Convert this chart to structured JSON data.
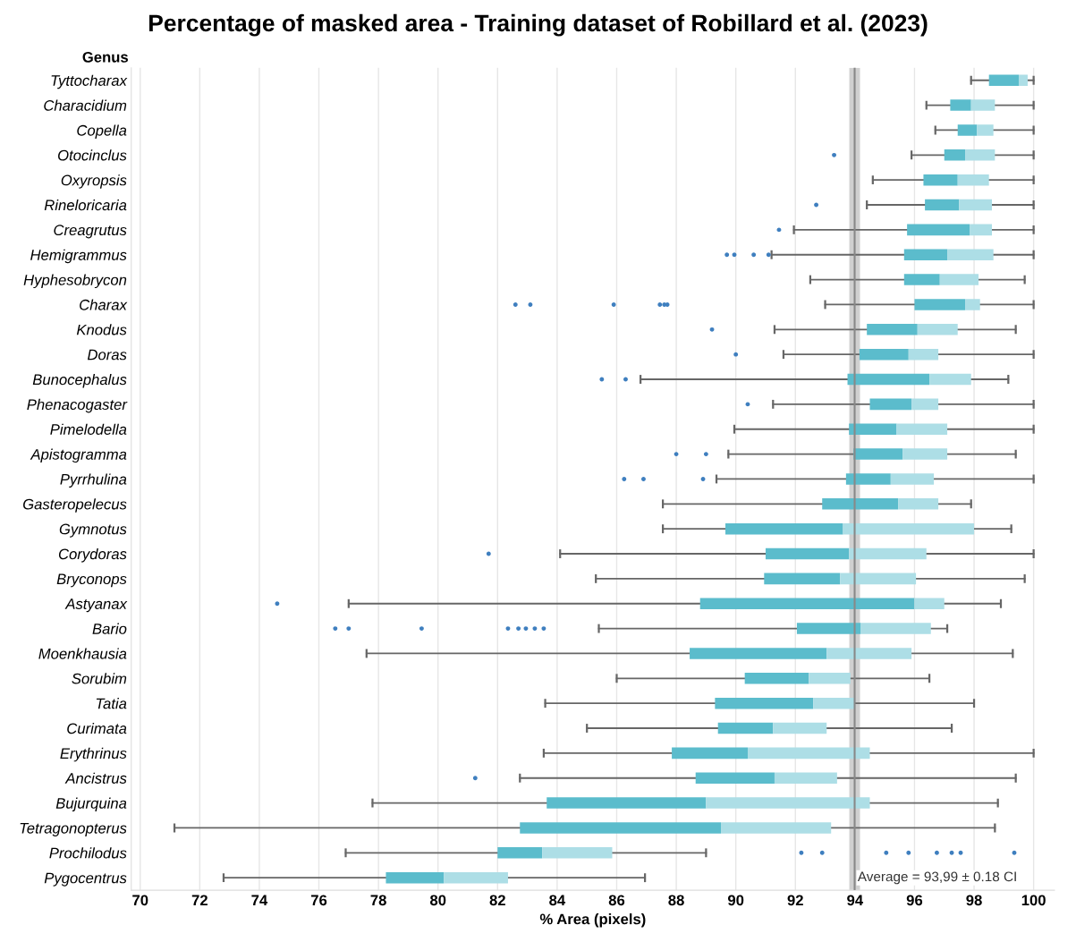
{
  "chart_data": {
    "type": "box",
    "orientation": "horizontal",
    "title": "Percentage of masked area - Training dataset of Robillard et al. (2023)",
    "xlabel": "% Area (pixels)",
    "ylabel": "Genus",
    "categories": [
      "Tyttocharax",
      "Characidium",
      "Copella",
      "Otocinclus",
      "Oxyropsis",
      "Rineloricaria",
      "Creagrutus",
      "Hemigrammus",
      "Hyphesobrycon",
      "Charax",
      "Knodus",
      "Doras",
      "Bunocephalus",
      "Phenacogaster",
      "Pimelodella",
      "Apistogramma",
      "Pyrrhulina",
      "Gasteropelecus",
      "Gymnotus",
      "Corydoras",
      "Bryconops",
      "Astyanax",
      "Bario",
      "Moenkhausia",
      "Sorubim",
      "Tatia",
      "Curimata",
      "Erythrinus",
      "Ancistrus",
      "Bujurquina",
      "Tetragonopterus",
      "Prochilodus",
      "Pygocentrus"
    ],
    "series": [
      {
        "color": "#5bbccc",
        "boxes": [
          {
            "low": 97.9,
            "q1": 98.5,
            "median": 99.5,
            "q3": 99.8,
            "high": 100
          },
          {
            "low": 96.4,
            "q1": 97.2,
            "median": 97.9,
            "q3": 98.7,
            "high": 100
          },
          {
            "low": 96.7,
            "q1": 97.45,
            "median": 98.1,
            "q3": 98.65,
            "high": 100
          },
          {
            "low": 95.9,
            "q1": 97.0,
            "median": 97.7,
            "q3": 98.7,
            "high": 100,
            "outliers": [
              93.3
            ]
          },
          {
            "low": 94.6,
            "q1": 96.3,
            "median": 97.45,
            "q3": 98.5,
            "high": 100
          },
          {
            "low": 94.4,
            "q1": 96.35,
            "median": 97.5,
            "q3": 98.6,
            "high": 100,
            "outliers": [
              92.7
            ]
          },
          {
            "low": 91.95,
            "q1": 95.75,
            "median": 97.85,
            "q3": 98.6,
            "high": 100,
            "outliers": [
              91.45
            ]
          },
          {
            "low": 91.2,
            "q1": 95.65,
            "median": 97.1,
            "q3": 98.65,
            "high": 100,
            "outliers": [
              89.7,
              89.95,
              90.6,
              91.1
            ]
          },
          {
            "low": 92.5,
            "q1": 95.65,
            "median": 96.85,
            "q3": 98.15,
            "high": 99.7
          },
          {
            "low": 93.0,
            "q1": 96.0,
            "median": 97.7,
            "q3": 98.2,
            "high": 100,
            "outliers": [
              82.6,
              83.1,
              85.9,
              87.45,
              87.6,
              87.7
            ]
          },
          {
            "low": 91.3,
            "q1": 94.4,
            "median": 96.1,
            "q3": 97.45,
            "high": 99.4,
            "outliers": [
              89.2
            ]
          },
          {
            "low": 91.6,
            "q1": 94.15,
            "median": 95.8,
            "q3": 96.8,
            "high": 100,
            "outliers": [
              90.0
            ]
          },
          {
            "low": 86.8,
            "q1": 93.75,
            "median": 96.5,
            "q3": 97.9,
            "high": 99.15,
            "outliers": [
              85.5,
              86.3
            ]
          },
          {
            "low": 91.25,
            "q1": 94.5,
            "median": 95.9,
            "q3": 96.8,
            "high": 100,
            "outliers": [
              90.4
            ]
          },
          {
            "low": 89.95,
            "q1": 93.8,
            "median": 95.4,
            "q3": 97.1,
            "high": 100
          },
          {
            "low": 89.75,
            "q1": 93.95,
            "median": 95.6,
            "q3": 97.1,
            "high": 99.4,
            "outliers": [
              88.0,
              89.0
            ]
          },
          {
            "low": 89.35,
            "q1": 93.7,
            "median": 95.2,
            "q3": 96.65,
            "high": 100,
            "outliers": [
              86.25,
              86.9,
              88.9
            ]
          },
          {
            "low": 87.55,
            "q1": 92.9,
            "median": 95.45,
            "q3": 96.8,
            "high": 97.9
          },
          {
            "low": 87.55,
            "q1": 89.65,
            "median": 93.6,
            "q3": 98.0,
            "high": 99.25
          },
          {
            "low": 84.1,
            "q1": 91.0,
            "median": 93.8,
            "q3": 96.4,
            "high": 100,
            "outliers": [
              81.7
            ]
          },
          {
            "low": 85.3,
            "q1": 90.95,
            "median": 93.5,
            "q3": 96.05,
            "high": 99.7
          },
          {
            "low": 77.0,
            "q1": 88.8,
            "median": 96.0,
            "q3": 97.0,
            "high": 98.9,
            "outliers": [
              74.6
            ]
          },
          {
            "low": 85.4,
            "q1": 92.05,
            "median": 94.2,
            "q3": 96.55,
            "high": 97.1,
            "outliers": [
              76.55,
              77.0,
              79.45,
              82.35,
              82.7,
              82.95,
              83.25,
              83.55
            ]
          },
          {
            "low": 77.6,
            "q1": 88.45,
            "median": 93.05,
            "q3": 95.9,
            "high": 99.3
          },
          {
            "low": 86.0,
            "q1": 90.3,
            "median": 92.45,
            "q3": 93.85,
            "high": 96.5
          },
          {
            "low": 83.6,
            "q1": 89.3,
            "median": 92.6,
            "q3": 94.0,
            "high": 98.0
          },
          {
            "low": 85.0,
            "q1": 89.4,
            "median": 91.25,
            "q3": 93.05,
            "high": 97.25
          },
          {
            "low": 83.55,
            "q1": 87.85,
            "median": 90.4,
            "q3": 94.5,
            "high": 100
          },
          {
            "low": 82.75,
            "q1": 88.65,
            "median": 91.3,
            "q3": 93.4,
            "high": 99.4,
            "outliers": [
              81.25
            ]
          },
          {
            "low": 77.8,
            "q1": 83.65,
            "median": 89.0,
            "q3": 94.5,
            "high": 98.8
          },
          {
            "low": 71.15,
            "q1": 82.75,
            "median": 89.5,
            "q3": 93.2,
            "high": 98.7
          },
          {
            "low": 76.9,
            "q1": 82.0,
            "median": 83.5,
            "q3": 85.85,
            "high": 89.0,
            "outliers": [
              92.2,
              92.9,
              95.05,
              95.8,
              96.75,
              97.25,
              97.55,
              99.35
            ]
          },
          {
            "low": 72.8,
            "q1": 78.25,
            "median": 80.2,
            "q3": 82.35,
            "high": 86.95
          }
        ]
      }
    ],
    "xlim": [
      69.7,
      100.7
    ],
    "xticks": [
      70,
      72,
      74,
      76,
      78,
      80,
      82,
      84,
      86,
      88,
      90,
      92,
      94,
      96,
      98,
      100
    ],
    "grid": "x",
    "legend": false,
    "ref_lines": [
      {
        "axis": "x",
        "value": 93.99,
        "label": "Average = 93,99 ± 0.18 CI",
        "color": "#888888"
      }
    ],
    "bands": [
      {
        "axis": "x",
        "from": 93.81,
        "to": 94.17,
        "color": "#d0d0d0"
      }
    ]
  }
}
